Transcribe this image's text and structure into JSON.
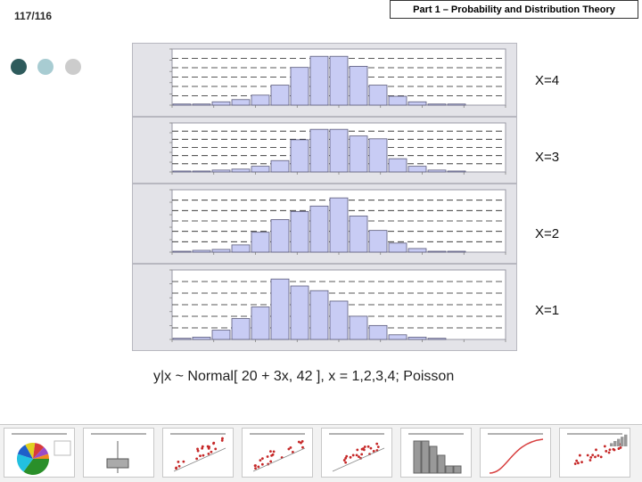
{
  "header": {
    "slide_number": "117/116",
    "title": "Part 1 – Probability and Distribution Theory"
  },
  "colors": {
    "dot1": "#2e5b5c",
    "dot2": "#a8ccd2",
    "dot3": "#cccccc",
    "bar_fill": "#c8ccf4",
    "bar_stroke": "#5a5a7a"
  },
  "panels": [
    {
      "label": "X=4"
    },
    {
      "label": "X=3"
    },
    {
      "label": "X=2"
    },
    {
      "label": "X=1"
    }
  ],
  "caption": "y|x ~ Normal[ 20 + 3x, 42 ], x = 1,2,3,4; Poisson",
  "chart_data": [
    {
      "type": "bar",
      "condition": "X=4",
      "values": [
        1,
        1,
        3,
        5,
        9,
        18,
        34,
        44,
        44,
        35,
        18,
        8,
        3,
        1,
        1,
        0,
        0
      ]
    },
    {
      "type": "bar",
      "condition": "X=3",
      "values": [
        1,
        1,
        2,
        3,
        6,
        12,
        34,
        45,
        45,
        38,
        35,
        14,
        6,
        2,
        1,
        0,
        0
      ]
    },
    {
      "type": "bar",
      "condition": "X=2",
      "values": [
        1,
        2,
        3,
        8,
        22,
        36,
        45,
        51,
        60,
        40,
        24,
        10,
        4,
        1,
        1,
        0,
        0
      ]
    },
    {
      "type": "bar",
      "condition": "X=1",
      "values": [
        1,
        2,
        8,
        18,
        28,
        52,
        46,
        42,
        33,
        20,
        12,
        4,
        2,
        1,
        0,
        0,
        0
      ]
    }
  ],
  "thumbnails": [
    {
      "name": "pie-chart"
    },
    {
      "name": "box-plot"
    },
    {
      "name": "scatter-plot"
    },
    {
      "name": "scatter-fit-plot"
    },
    {
      "name": "scatter-plot"
    },
    {
      "name": "histogram"
    },
    {
      "name": "cdf-curve"
    },
    {
      "name": "scatter-histogram"
    }
  ]
}
